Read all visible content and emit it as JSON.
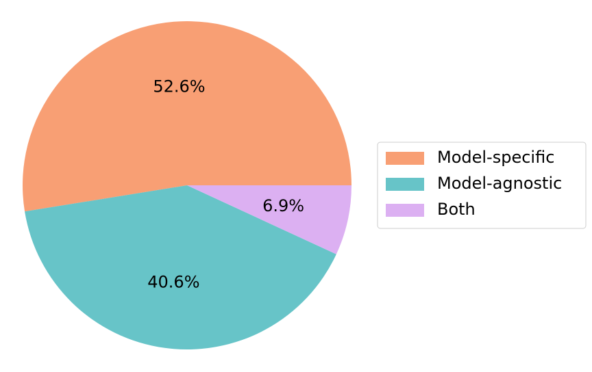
{
  "chart_data": {
    "type": "pie",
    "categories": [
      "Model-specific",
      "Model-agnostic",
      "Both"
    ],
    "values": [
      52.6,
      40.6,
      6.9
    ],
    "value_labels": [
      "52.6%",
      "40.6%",
      "6.9%"
    ],
    "colors": [
      "#f89f74",
      "#67c4c8",
      "#dcb0f2"
    ],
    "legend": "right"
  }
}
